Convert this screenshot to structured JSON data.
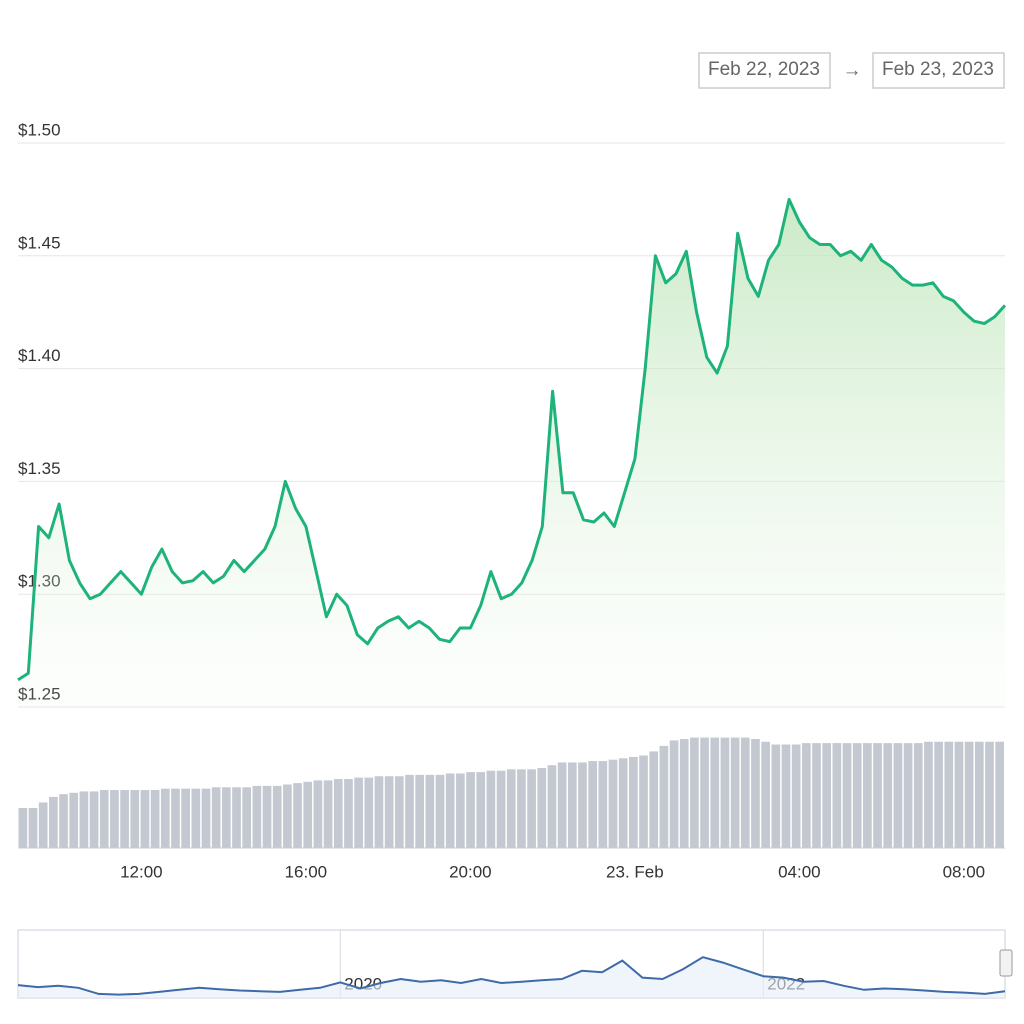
{
  "chart_data": {
    "type": "line",
    "range": {
      "from": "Feb 22, 2023",
      "arrow": "→",
      "to": "Feb 23, 2023"
    },
    "categories": [
      null,
      null,
      null,
      null,
      null,
      null,
      null,
      null,
      null,
      null,
      null,
      null,
      "12:00",
      null,
      null,
      null,
      null,
      null,
      null,
      null,
      null,
      null,
      null,
      null,
      null,
      null,
      null,
      null,
      "16:00",
      null,
      null,
      null,
      null,
      null,
      null,
      null,
      null,
      null,
      null,
      null,
      null,
      null,
      null,
      null,
      "20:00",
      null,
      null,
      null,
      null,
      null,
      null,
      null,
      null,
      null,
      null,
      null,
      null,
      null,
      null,
      null,
      "23. Feb",
      null,
      null,
      null,
      null,
      null,
      null,
      null,
      null,
      null,
      null,
      null,
      null,
      null,
      null,
      null,
      "04:00",
      null,
      null,
      null,
      null,
      null,
      null,
      null,
      null,
      null,
      null,
      null,
      null,
      null,
      null,
      null,
      "08:00",
      null,
      null,
      null,
      null
    ],
    "series": [
      {
        "color": "#1db37a",
        "values": [
          1.262,
          1.265,
          1.33,
          1.325,
          1.34,
          1.315,
          1.305,
          1.298,
          1.3,
          1.305,
          1.31,
          1.305,
          1.3,
          1.312,
          1.32,
          1.31,
          1.305,
          1.306,
          1.31,
          1.305,
          1.308,
          1.315,
          1.31,
          1.315,
          1.32,
          1.33,
          1.35,
          1.338,
          1.33,
          1.31,
          1.29,
          1.3,
          1.295,
          1.282,
          1.278,
          1.285,
          1.288,
          1.29,
          1.285,
          1.288,
          1.285,
          1.28,
          1.279,
          1.285,
          1.285,
          1.295,
          1.31,
          1.298,
          1.3,
          1.305,
          1.315,
          1.33,
          1.39,
          1.345,
          1.345,
          1.333,
          1.332,
          1.336,
          1.33,
          1.345,
          1.36,
          1.4,
          1.45,
          1.438,
          1.442,
          1.452,
          1.425,
          1.405,
          1.398,
          1.41,
          1.46,
          1.44,
          1.432,
          1.448,
          1.455,
          1.475,
          1.465,
          1.458,
          1.455,
          1.455,
          1.45,
          1.452,
          1.448,
          1.455,
          1.448,
          1.445,
          1.44,
          1.437,
          1.437,
          1.438,
          1.432,
          1.43,
          1.425,
          1.421,
          1.42,
          1.423,
          1.428
        ]
      }
    ],
    "ylim": [
      1.25,
      1.5
    ],
    "yticks": [
      {
        "value": 1.25,
        "label": "$1.25"
      },
      {
        "value": 1.3,
        "label": "$1.30"
      },
      {
        "value": 1.35,
        "label": "$1.35"
      },
      {
        "value": 1.4,
        "label": "$1.40"
      },
      {
        "value": 1.45,
        "label": "$1.45"
      },
      {
        "value": 1.5,
        "label": "$1.50"
      }
    ],
    "grid": true,
    "volume": {
      "color": "#c4c8d0",
      "ylim": [
        0,
        100
      ],
      "values": [
        29,
        29,
        33,
        37,
        39,
        40,
        41,
        41,
        42,
        42,
        42,
        42,
        42,
        42,
        43,
        43,
        43,
        43,
        43,
        44,
        44,
        44,
        44,
        45,
        45,
        45,
        46,
        47,
        48,
        49,
        49,
        50,
        50,
        51,
        51,
        52,
        52,
        52,
        53,
        53,
        53,
        53,
        54,
        54,
        55,
        55,
        56,
        56,
        57,
        57,
        57,
        58,
        60,
        62,
        62,
        62,
        63,
        63,
        64,
        65,
        66,
        67,
        70,
        74,
        78,
        79,
        80,
        80,
        80,
        80,
        80,
        80,
        79,
        77,
        75,
        75,
        75,
        76,
        76,
        76,
        76,
        76,
        76,
        76,
        76,
        76,
        76,
        76,
        76,
        77,
        77,
        77,
        77,
        77,
        77,
        77,
        77
      ]
    },
    "navigator": {
      "color": "#3d6aa8",
      "ylim": [
        0,
        100
      ],
      "categories": [
        null,
        null,
        null,
        null,
        null,
        null,
        null,
        null,
        null,
        null,
        null,
        null,
        null,
        null,
        null,
        null,
        "2020",
        null,
        null,
        null,
        null,
        null,
        null,
        null,
        null,
        null,
        null,
        null,
        null,
        null,
        null,
        null,
        null,
        null,
        null,
        null,
        null,
        "2022",
        null,
        null,
        null,
        null,
        null,
        null,
        null,
        null,
        null,
        null,
        null,
        null
      ],
      "values": [
        19,
        16,
        18,
        15,
        6,
        5,
        6,
        9,
        12,
        15,
        13,
        11,
        10,
        9,
        12,
        15,
        23,
        14,
        22,
        28,
        24,
        26,
        22,
        28,
        22,
        24,
        26,
        28,
        40,
        38,
        55,
        30,
        28,
        42,
        60,
        52,
        42,
        32,
        30,
        24,
        25,
        18,
        12,
        14,
        13,
        11,
        9,
        8,
        6,
        10
      ]
    }
  }
}
